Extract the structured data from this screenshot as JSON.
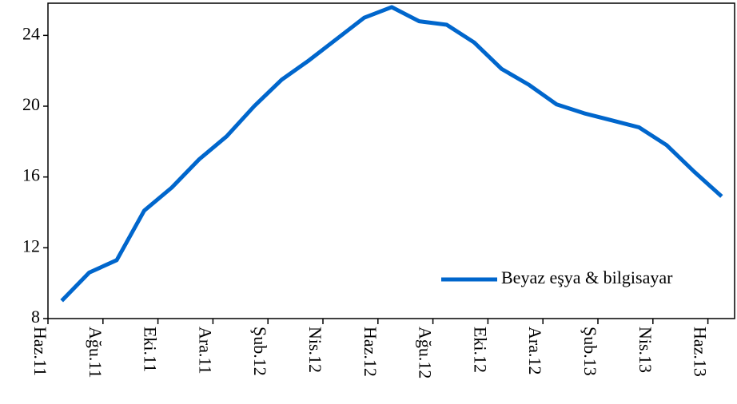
{
  "chart_data": {
    "type": "line",
    "categories": [
      "Haz.11",
      null,
      "Ağu.11",
      null,
      "Eki.11",
      null,
      "Ara.11",
      null,
      "Şub.12",
      null,
      "Nis.12",
      null,
      "Haz.12",
      null,
      "Ağu.12",
      null,
      "Eki.12",
      null,
      "Ara.12",
      null,
      "Şub.13",
      null,
      "Nis.13",
      null,
      "Haz.13"
    ],
    "series": [
      {
        "name": "Beyaz eşya & bilgisayar",
        "color": "#0066cc",
        "values": [
          9.0,
          10.6,
          11.3,
          14.1,
          15.4,
          17.0,
          18.3,
          20.0,
          21.5,
          22.6,
          23.8,
          25.0,
          25.6,
          24.8,
          24.6,
          23.6,
          22.1,
          21.2,
          20.1,
          19.6,
          19.2,
          18.8,
          17.8,
          16.3,
          14.9
        ]
      }
    ],
    "ylim": [
      8,
      26
    ],
    "yticks": [
      8,
      12,
      16,
      20,
      24
    ],
    "legend": "lower right"
  }
}
